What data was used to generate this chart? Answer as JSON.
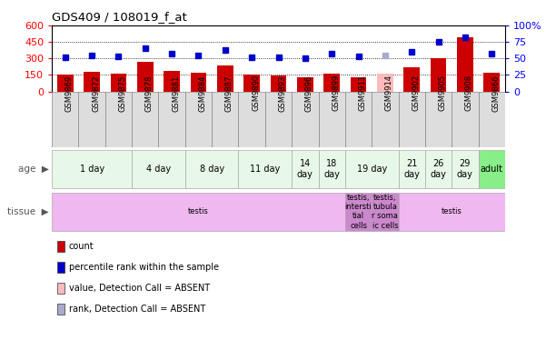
{
  "title": "GDS409 / 108019_f_at",
  "samples": [
    "GSM9869",
    "GSM9872",
    "GSM9875",
    "GSM9878",
    "GSM9881",
    "GSM9884",
    "GSM9887",
    "GSM9890",
    "GSM9893",
    "GSM9896",
    "GSM9899",
    "GSM9911",
    "GSM9914",
    "GSM9902",
    "GSM9905",
    "GSM9908",
    "GSM9866"
  ],
  "bar_values": [
    157,
    175,
    163,
    265,
    185,
    168,
    232,
    153,
    147,
    128,
    162,
    130,
    158,
    215,
    305,
    490,
    170
  ],
  "bar_absent": [
    false,
    false,
    false,
    false,
    false,
    false,
    false,
    false,
    false,
    false,
    false,
    false,
    true,
    false,
    false,
    false,
    false
  ],
  "dot_values": [
    52,
    55,
    53,
    65,
    57,
    55,
    62,
    52,
    52,
    50,
    57,
    53,
    54,
    60,
    75,
    82,
    57
  ],
  "dot_absent": [
    false,
    false,
    false,
    false,
    false,
    false,
    false,
    false,
    false,
    false,
    false,
    false,
    true,
    false,
    false,
    false,
    false
  ],
  "bar_color_normal": "#cc0000",
  "bar_color_absent": "#ffbbbb",
  "dot_color_normal": "#0000cc",
  "dot_color_absent": "#aaaacc",
  "ylim_left": [
    0,
    600
  ],
  "ylim_right": [
    0,
    100
  ],
  "yticks_left": [
    0,
    150,
    300,
    450,
    600
  ],
  "yticks_right": [
    0,
    25,
    50,
    75,
    100
  ],
  "age_groups": [
    {
      "label": "1 day",
      "start": 0,
      "end": 3,
      "color": "#e8f8e8"
    },
    {
      "label": "4 day",
      "start": 3,
      "end": 5,
      "color": "#e8f8e8"
    },
    {
      "label": "8 day",
      "start": 5,
      "end": 7,
      "color": "#e8f8e8"
    },
    {
      "label": "11 day",
      "start": 7,
      "end": 9,
      "color": "#e8f8e8"
    },
    {
      "label": "14\nday",
      "start": 9,
      "end": 10,
      "color": "#e8f8e8"
    },
    {
      "label": "18\nday",
      "start": 10,
      "end": 11,
      "color": "#e8f8e8"
    },
    {
      "label": "19 day",
      "start": 11,
      "end": 13,
      "color": "#e8f8e8"
    },
    {
      "label": "21\nday",
      "start": 13,
      "end": 14,
      "color": "#e8f8e8"
    },
    {
      "label": "26\nday",
      "start": 14,
      "end": 15,
      "color": "#e8f8e8"
    },
    {
      "label": "29\nday",
      "start": 15,
      "end": 16,
      "color": "#e8f8e8"
    },
    {
      "label": "adult",
      "start": 16,
      "end": 17,
      "color": "#88ee88"
    }
  ],
  "tissue_groups": [
    {
      "label": "testis",
      "start": 0,
      "end": 11,
      "color": "#f0b8f0"
    },
    {
      "label": "testis,\nintersti\ntial\ncells",
      "start": 11,
      "end": 12,
      "color": "#cc88cc"
    },
    {
      "label": "testis,\ntubula\nr soma\nic cells",
      "start": 12,
      "end": 13,
      "color": "#cc88cc"
    },
    {
      "label": "testis",
      "start": 13,
      "end": 17,
      "color": "#f0b8f0"
    }
  ],
  "bg_color": "#ffffff",
  "legend_items": [
    {
      "label": "count",
      "color": "#cc0000"
    },
    {
      "label": "percentile rank within the sample",
      "color": "#0000cc"
    },
    {
      "label": "value, Detection Call = ABSENT",
      "color": "#ffbbbb"
    },
    {
      "label": "rank, Detection Call = ABSENT",
      "color": "#aaaacc"
    }
  ]
}
